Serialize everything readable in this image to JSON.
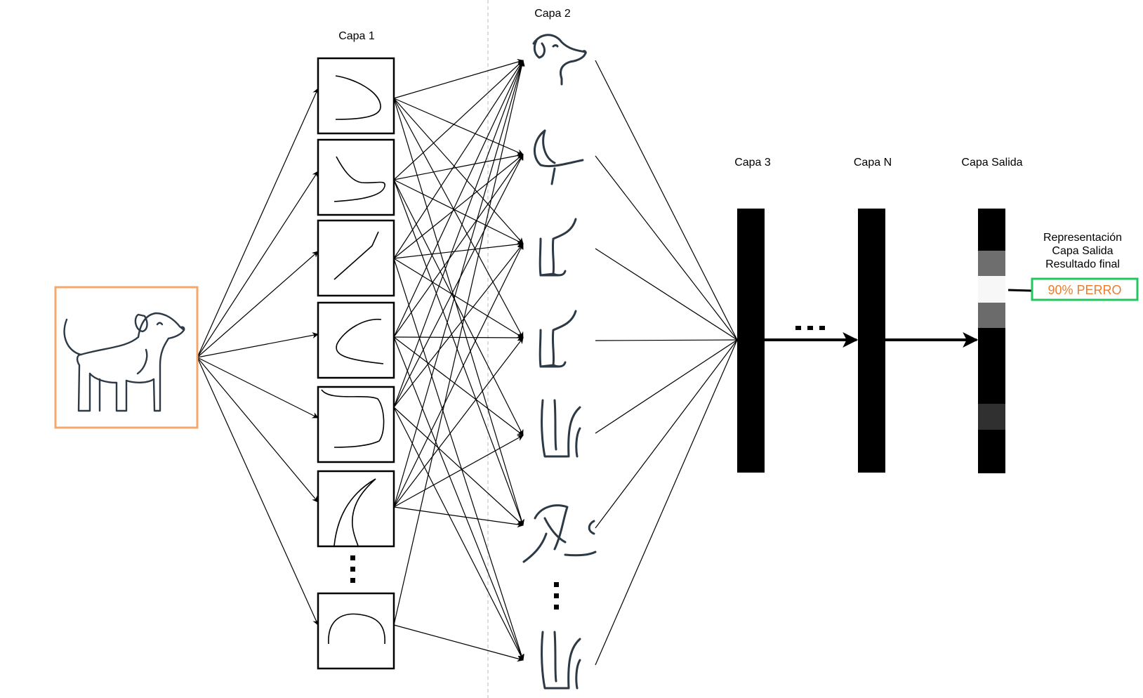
{
  "labels": {
    "layer1": "Capa 1",
    "layer2": "Capa 2",
    "layer3": "Capa 3",
    "layerN": "Capa N",
    "output_layer": "Capa Salida",
    "output_repr_line1": "Representación",
    "output_repr_line2": "Capa Salida",
    "output_repr_line3": "Resultado final",
    "result": "90%  PERRO"
  },
  "colors": {
    "input_border": "#f5a86a",
    "result_border": "#22c55e",
    "result_text": "#f07a2a",
    "line": "#000000"
  },
  "icons": {
    "input": "dog-icon",
    "layer1_features": [
      "curve-u-right-icon",
      "curve-hook-icon",
      "line-diagonal-icon",
      "curve-c-icon",
      "curve-bracket-icon",
      "ear-curve-icon",
      "arch-curve-icon"
    ],
    "layer2_features": [
      "dog-head-icon",
      "dog-ear-icon",
      "dog-leg-icon",
      "dog-leg-icon",
      "dog-hind-legs-icon",
      "dog-face-icon",
      "dog-hind-legs-icon"
    ]
  },
  "output_cells": [
    "gray",
    "white",
    "gray",
    "dark-gray"
  ]
}
